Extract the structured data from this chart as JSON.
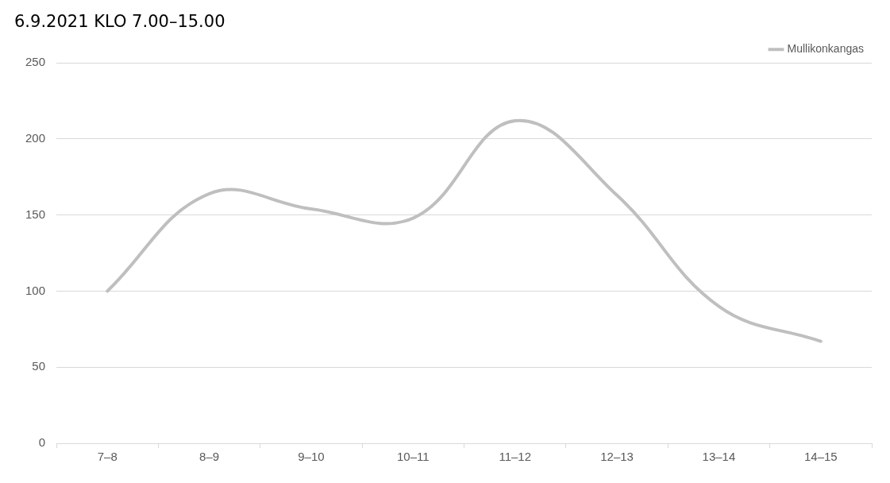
{
  "chart_data": {
    "type": "line",
    "title": "6.9.2021 KLO 7.00–15.00",
    "categories": [
      "7–8",
      "8–9",
      "9–10",
      "10–11",
      "11–12",
      "12–13",
      "13–14",
      "14–15"
    ],
    "series": [
      {
        "name": "Mullikonkangas",
        "color": "#bfbfbf",
        "values": [
          100,
          164,
          154,
          148,
          212,
          163,
          90,
          67
        ]
      }
    ],
    "ylim": [
      0,
      250
    ],
    "yticks": [
      0,
      50,
      100,
      150,
      200,
      250
    ],
    "grid": "y",
    "legend": "top right",
    "marker": "none",
    "line_style": "solid"
  }
}
